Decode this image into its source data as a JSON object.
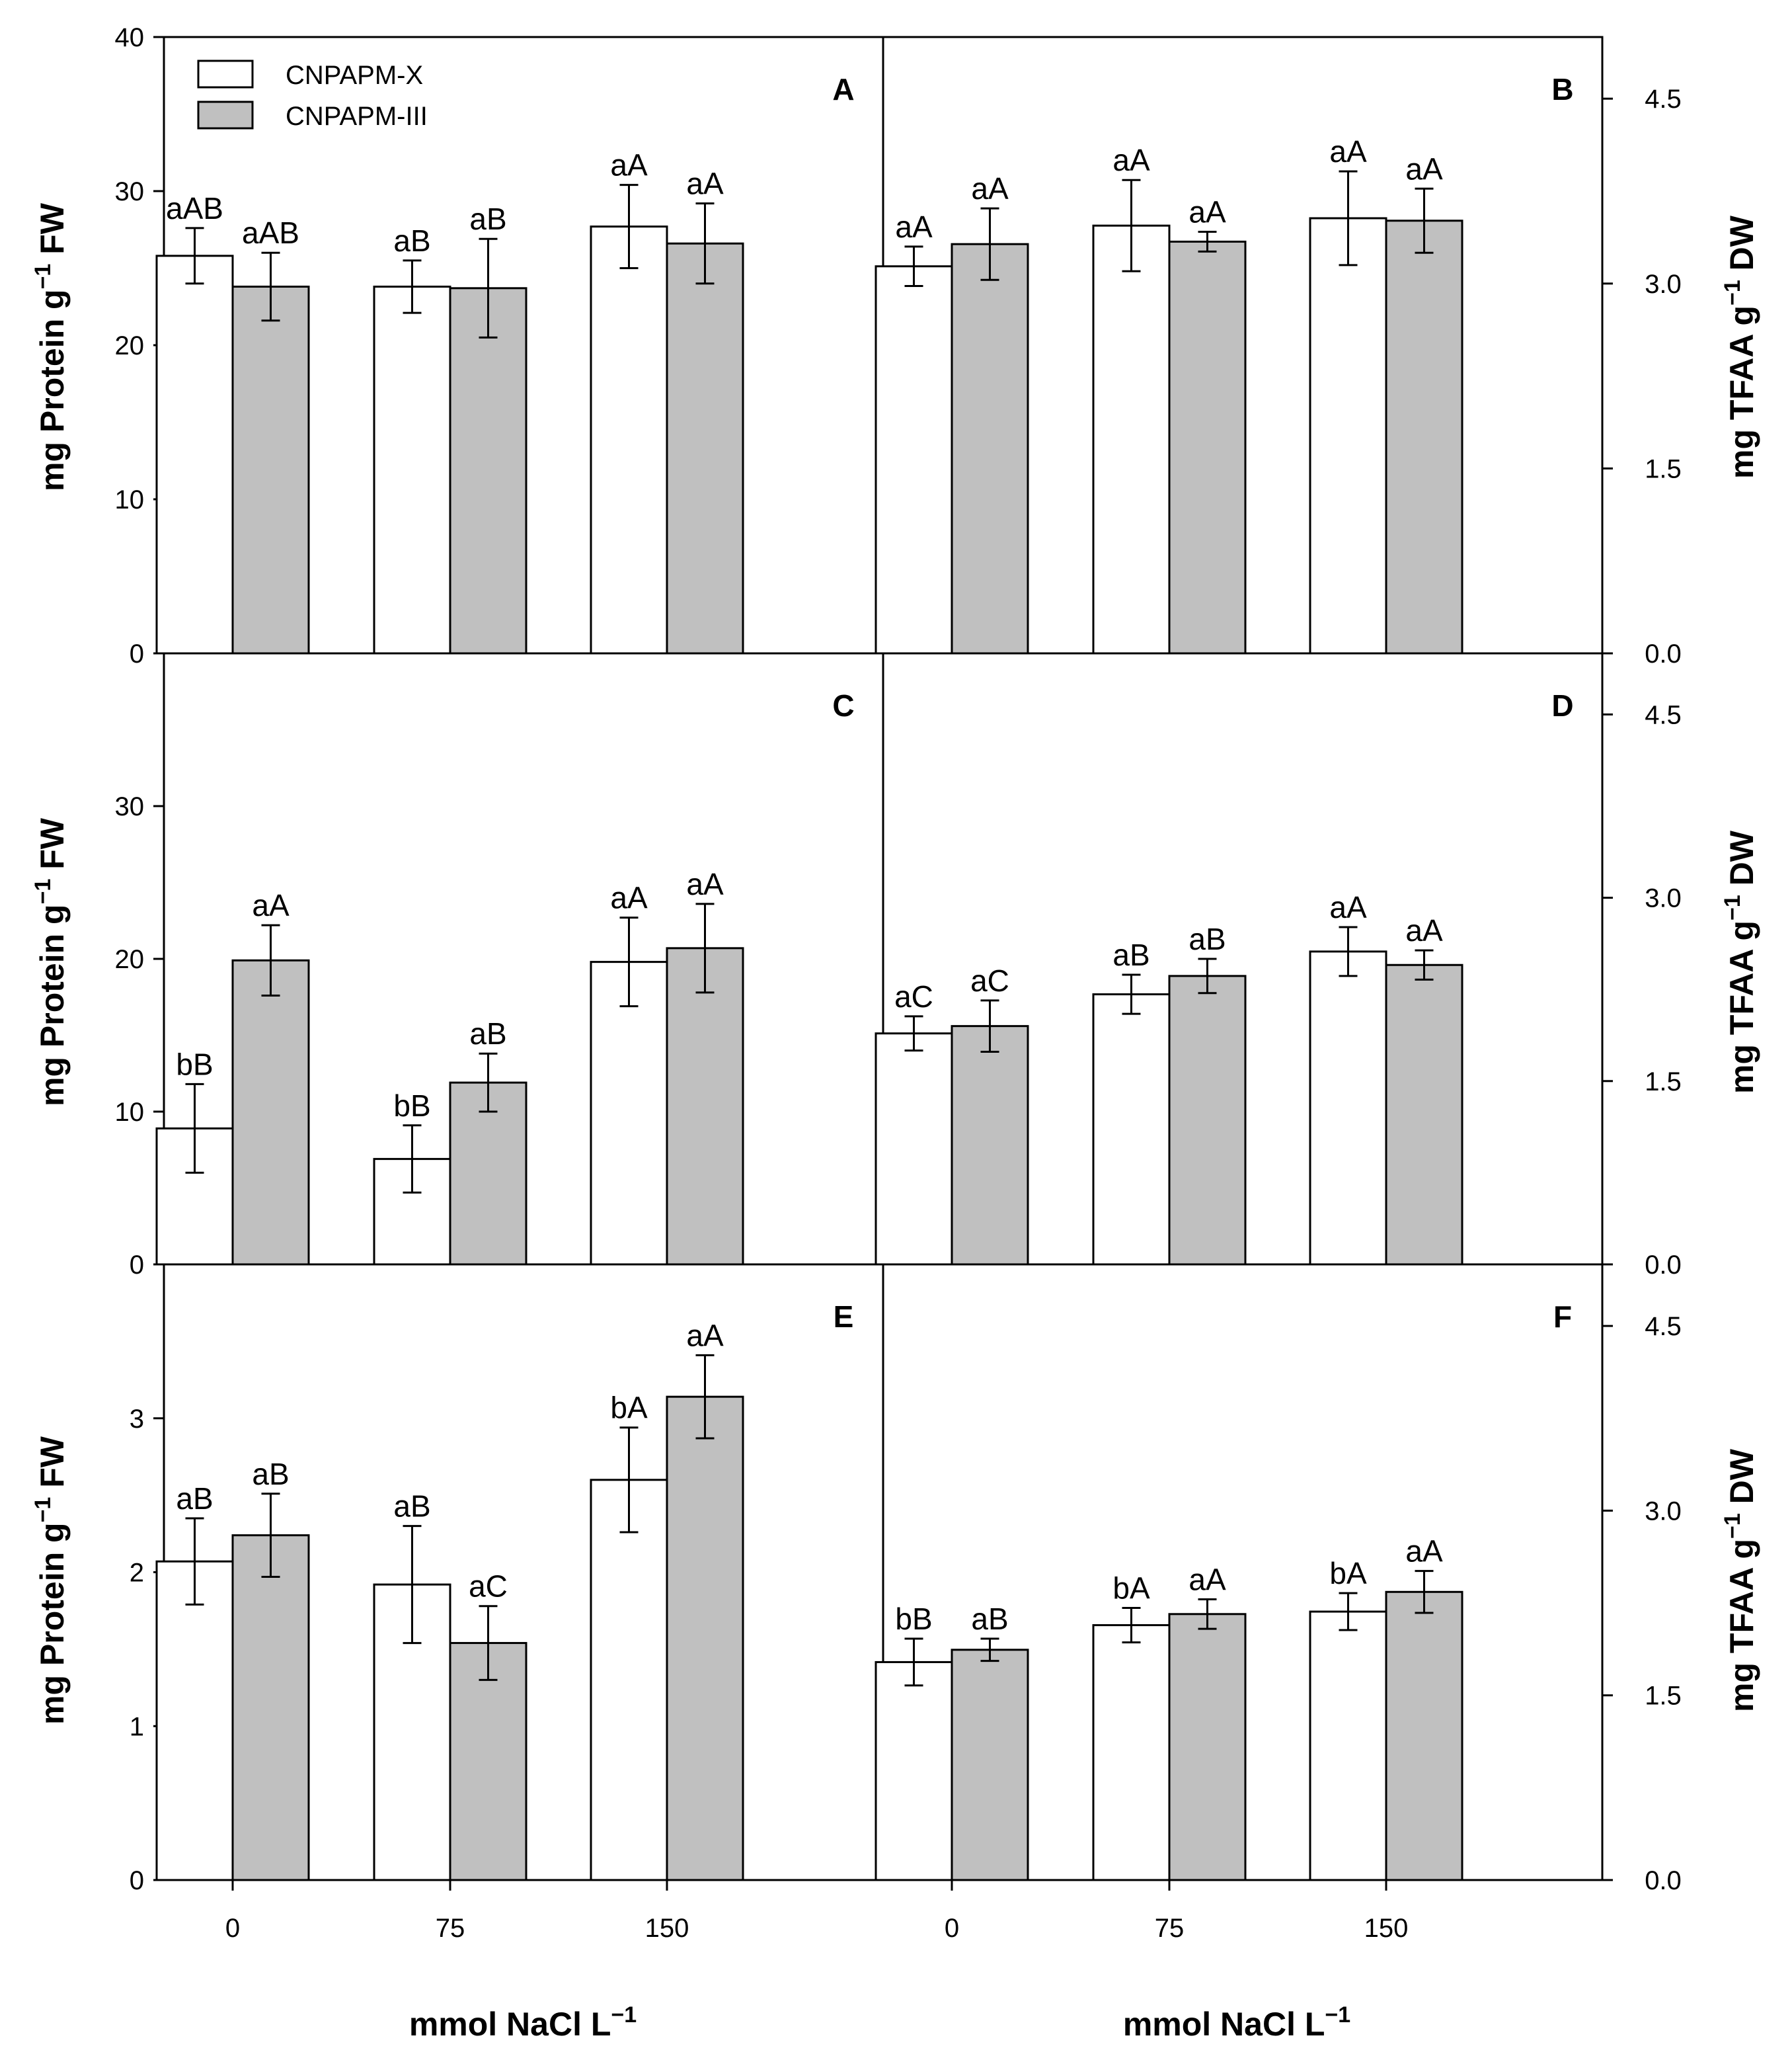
{
  "chart_data": [
    {
      "panel": "A",
      "type": "bar",
      "axis_side": "left",
      "categories": [
        "0",
        "75",
        "150"
      ],
      "series": [
        {
          "name": "CNPAPM-X",
          "values": [
            25.8,
            23.8,
            27.7
          ],
          "errors": [
            1.8,
            1.7,
            2.7
          ],
          "labels": [
            "aAB",
            "aB",
            "aA"
          ]
        },
        {
          "name": "CNPAPM-III",
          "values": [
            23.8,
            23.7,
            26.6
          ],
          "errors": [
            2.2,
            3.2,
            2.6
          ],
          "labels": [
            "aAB",
            "aB",
            "aA"
          ]
        }
      ],
      "ylim": [
        0,
        40
      ],
      "ticks": [
        "0",
        "10",
        "20",
        "30",
        "40"
      ],
      "tick_values": [
        0,
        10,
        20,
        30,
        40
      ]
    },
    {
      "panel": "B",
      "type": "bar",
      "axis_side": "right",
      "categories": [
        "0",
        "75",
        "150"
      ],
      "series": [
        {
          "name": "CNPAPM-X",
          "values": [
            3.14,
            3.47,
            3.53
          ],
          "errors": [
            0.16,
            0.37,
            0.38
          ],
          "labels": [
            "aA",
            "aA",
            "aA"
          ]
        },
        {
          "name": "CNPAPM-III",
          "values": [
            3.32,
            3.34,
            3.51
          ],
          "errors": [
            0.29,
            0.08,
            0.26
          ],
          "labels": [
            "aA",
            "aA",
            "aA"
          ]
        }
      ],
      "ylim": [
        0,
        5
      ],
      "ticks": [
        "0.0",
        "1.5",
        "3.0",
        "4.5"
      ],
      "tick_values": [
        0,
        1.5,
        3.0,
        4.5
      ]
    },
    {
      "panel": "C",
      "type": "bar",
      "axis_side": "left",
      "categories": [
        "0",
        "75",
        "150"
      ],
      "series": [
        {
          "name": "CNPAPM-X",
          "values": [
            8.9,
            6.9,
            19.8
          ],
          "errors": [
            2.9,
            2.2,
            2.9
          ],
          "labels": [
            "bB",
            "bB",
            "aA"
          ]
        },
        {
          "name": "CNPAPM-III",
          "values": [
            19.9,
            11.9,
            20.7
          ],
          "errors": [
            2.3,
            1.9,
            2.9
          ],
          "labels": [
            "aA",
            "aB",
            "aA"
          ]
        }
      ],
      "ylim": [
        0,
        40
      ],
      "ticks": [
        "0",
        "10",
        "20",
        "30"
      ],
      "tick_values": [
        0,
        10,
        20,
        30
      ]
    },
    {
      "panel": "D",
      "type": "bar",
      "axis_side": "right",
      "categories": [
        "0",
        "75",
        "150"
      ],
      "series": [
        {
          "name": "CNPAPM-X",
          "values": [
            1.89,
            2.21,
            2.56
          ],
          "errors": [
            0.14,
            0.16,
            0.2
          ],
          "labels": [
            "aC",
            "aB",
            "aA"
          ]
        },
        {
          "name": "CNPAPM-III",
          "values": [
            1.95,
            2.36,
            2.45
          ],
          "errors": [
            0.21,
            0.14,
            0.12
          ],
          "labels": [
            "aC",
            "aB",
            "aA"
          ]
        }
      ],
      "ylim": [
        0,
        5
      ],
      "ticks": [
        "0.0",
        "1.5",
        "3.0",
        "4.5"
      ],
      "tick_values": [
        0,
        1.5,
        3.0,
        4.5
      ]
    },
    {
      "panel": "E",
      "type": "bar",
      "axis_side": "left",
      "categories": [
        "0",
        "75",
        "150"
      ],
      "series": [
        {
          "name": "CNPAPM-X",
          "values": [
            2.07,
            1.92,
            2.6
          ],
          "errors": [
            0.28,
            0.38,
            0.34
          ],
          "labels": [
            "aB",
            "aB",
            "bA"
          ]
        },
        {
          "name": "CNPAPM-III",
          "values": [
            2.24,
            1.54,
            3.14
          ],
          "errors": [
            0.27,
            0.24,
            0.27
          ],
          "labels": [
            "aB",
            "aC",
            "aA"
          ]
        }
      ],
      "ylim": [
        0,
        4
      ],
      "ticks": [
        "0",
        "1",
        "2",
        "3"
      ],
      "tick_values": [
        0,
        1,
        2,
        3
      ]
    },
    {
      "panel": "F",
      "type": "bar",
      "axis_side": "right",
      "categories": [
        "0",
        "75",
        "150"
      ],
      "series": [
        {
          "name": "CNPAPM-X",
          "values": [
            1.77,
            2.07,
            2.18
          ],
          "errors": [
            0.19,
            0.14,
            0.15
          ],
          "labels": [
            "bB",
            "bA",
            "bA"
          ]
        },
        {
          "name": "CNPAPM-III",
          "values": [
            1.87,
            2.16,
            2.34
          ],
          "errors": [
            0.09,
            0.12,
            0.17
          ],
          "labels": [
            "aB",
            "aA",
            "aA"
          ]
        }
      ],
      "ylim": [
        0,
        5
      ],
      "ticks": [
        "0.0",
        "1.5",
        "3.0",
        "4.5"
      ],
      "tick_values": [
        0,
        1.5,
        3.0,
        4.5
      ]
    }
  ],
  "legend": {
    "items": [
      {
        "label": "CNPAPM-X",
        "color": "#ffffff"
      },
      {
        "label": "CNPAPM-III",
        "color": "#c0c0c0"
      }
    ]
  },
  "labels": {
    "ylabel_left": "mg Protein g",
    "ylabel_left_sup": "−1",
    "ylabel_left_tail": " FW",
    "ylabel_right": "mg TFAA g",
    "ylabel_right_sup": "−1",
    "ylabel_right_tail": " DW",
    "xlabel": "mmol NaCl L",
    "xlabel_sup": "−1"
  },
  "colors": {
    "series1": "#ffffff",
    "series2": "#c0c0c0",
    "stroke": "#000000"
  }
}
